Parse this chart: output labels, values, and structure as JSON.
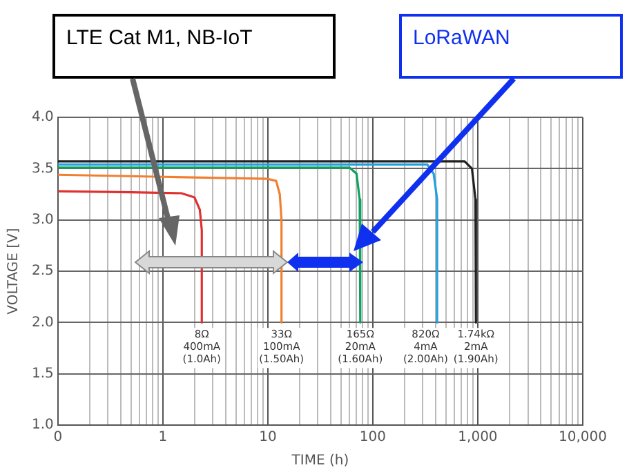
{
  "chart_data": {
    "type": "line",
    "xlabel": "TIME (h)",
    "ylabel": "VOLTAGE [V]",
    "log": "x",
    "grid": true,
    "legend": false,
    "marker": "none",
    "line_style": "solid",
    "xlim": [
      0.1,
      10000
    ],
    "ylim": [
      1.0,
      4.0
    ],
    "xticks": [
      {
        "value": 0.1,
        "label": "0"
      },
      {
        "value": 0.2,
        "label": null
      },
      {
        "value": 0.3,
        "label": null
      },
      {
        "value": 0.4,
        "label": null
      },
      {
        "value": 0.5,
        "label": null
      },
      {
        "value": 0.6,
        "label": null
      },
      {
        "value": 0.7,
        "label": null
      },
      {
        "value": 0.8,
        "label": null
      },
      {
        "value": 0.9,
        "label": null
      },
      1,
      {
        "value": 2,
        "label": null
      },
      {
        "value": 3,
        "label": null
      },
      {
        "value": 4,
        "label": null
      },
      {
        "value": 5,
        "label": null
      },
      {
        "value": 6,
        "label": null
      },
      {
        "value": 7,
        "label": null
      },
      {
        "value": 8,
        "label": null
      },
      {
        "value": 9,
        "label": null
      },
      10,
      {
        "value": 20,
        "label": null
      },
      {
        "value": 30,
        "label": null
      },
      {
        "value": 40,
        "label": null
      },
      {
        "value": 50,
        "label": null
      },
      {
        "value": 60,
        "label": null
      },
      {
        "value": 70,
        "label": null
      },
      {
        "value": 80,
        "label": null
      },
      {
        "value": 90,
        "label": null
      },
      100,
      {
        "value": 200,
        "label": null
      },
      {
        "value": 300,
        "label": null
      },
      {
        "value": 400,
        "label": null
      },
      {
        "value": 500,
        "label": null
      },
      {
        "value": 600,
        "label": null
      },
      {
        "value": 700,
        "label": null
      },
      {
        "value": 800,
        "label": null
      },
      {
        "value": 900,
        "label": null
      },
      {
        "value": 1000,
        "label": "1,000"
      },
      {
        "value": 2000,
        "label": null
      },
      {
        "value": 3000,
        "label": null
      },
      {
        "value": 4000,
        "label": null
      },
      {
        "value": 5000,
        "label": null
      },
      {
        "value": 6000,
        "label": null
      },
      {
        "value": 7000,
        "label": null
      },
      {
        "value": 8000,
        "label": null
      },
      {
        "value": 9000,
        "label": null
      },
      {
        "value": 10000,
        "label": "10,000"
      }
    ],
    "yticks": [
      {
        "value": 1.0,
        "label": "1.0"
      },
      {
        "value": 1.5,
        "label": "1.5"
      },
      {
        "value": 2.0,
        "label": "2.0"
      },
      {
        "value": 2.5,
        "label": "2.5"
      },
      {
        "value": 3.0,
        "label": "3.0"
      },
      {
        "value": 3.5,
        "label": "3.5"
      },
      {
        "value": 4.0,
        "label": "4.0"
      }
    ],
    "series": [
      {
        "color": "#e03030",
        "x": [
          0.1,
          0.5,
          1.5,
          2.0,
          2.25,
          2.35,
          2.35
        ],
        "values": [
          3.28,
          3.27,
          3.26,
          3.22,
          3.1,
          2.9,
          2.0
        ]
      },
      {
        "color": "#f08030",
        "x": [
          0.1,
          1,
          10,
          12,
          13,
          13.5,
          13.5
        ],
        "values": [
          3.44,
          3.42,
          3.4,
          3.38,
          3.25,
          3.0,
          2.0
        ]
      },
      {
        "color": "#10a060",
        "x": [
          0.1,
          60,
          70,
          75,
          76
        ],
        "values": [
          3.51,
          3.51,
          3.45,
          3.2,
          2.0
        ]
      },
      {
        "color": "#20a0e0",
        "x": [
          0.1,
          330,
          380,
          410,
          410
        ],
        "values": [
          3.54,
          3.54,
          3.45,
          3.2,
          2.0
        ]
      },
      {
        "color": "#202020",
        "x": [
          0.1,
          750,
          880,
          950,
          960
        ],
        "values": [
          3.57,
          3.57,
          3.5,
          3.2,
          2.0
        ]
      }
    ],
    "annotations": [
      "LTE Cat M1, NB-IoT",
      "LoRaWAN",
      {
        "text": "8Ω\n400mA\n(1.0Ah)",
        "x": 2.35,
        "y": 2.0
      },
      {
        "text": "33Ω\n100mA\n(1.50Ah)",
        "x": 13.5,
        "y": 2.0
      },
      {
        "text": "165Ω\n20mA\n(1.60Ah)",
        "x": 76,
        "y": 2.0
      },
      {
        "text": "820Ω\n4mA\n(2.00Ah)",
        "x": 410,
        "y": 2.0
      },
      {
        "text": "1.74kΩ\n2mA\n(1.90Ah)",
        "x": 960,
        "y": 2.0
      }
    ]
  }
}
